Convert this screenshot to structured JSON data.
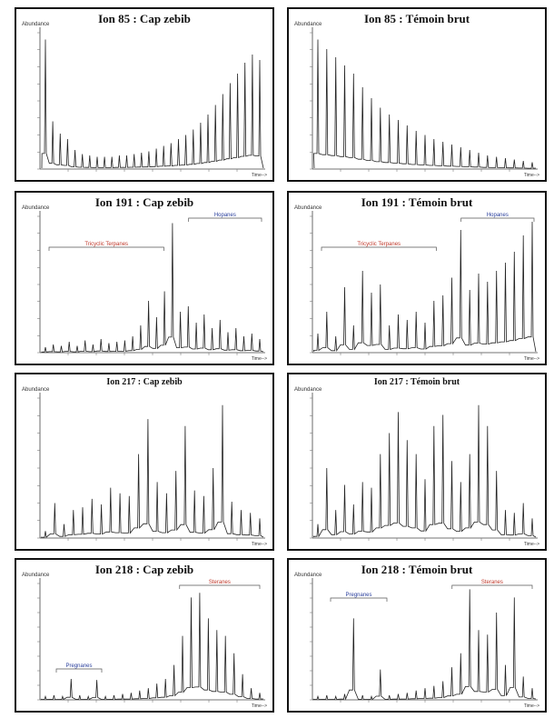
{
  "panels": [
    {
      "title": "Ion 85 : Cap zebib",
      "title_size": "big",
      "ylabel": "Abundance",
      "xlabel": "Time-->",
      "bracket": null
    },
    {
      "title": "Ion 85 : Témoin brut",
      "title_size": "big",
      "ylabel": "Abundance",
      "xlabel": "Time-->",
      "bracket": null
    },
    {
      "title": "Ion 191 : Cap zebib",
      "title_size": "big",
      "ylabel": "Abundance",
      "xlabel": "Time-->",
      "bracket_red": "Tricyclic Terpanes",
      "bracket_blue": "Hopanes"
    },
    {
      "title": "Ion 191 : Témoin brut",
      "title_size": "big",
      "ylabel": "Abundance",
      "xlabel": "Time-->",
      "bracket_red": "Tricyclic Terpanes",
      "bracket_blue": "Hopanes"
    },
    {
      "title": "Ion 217 : Cap zebib",
      "title_size": "small",
      "ylabel": "Abundance",
      "xlabel": "Time-->",
      "bracket": null
    },
    {
      "title": "Ion 217 : Témoin brut",
      "title_size": "small",
      "ylabel": "Abundance",
      "xlabel": "Time-->",
      "bracket": null
    },
    {
      "title": "Ion 218 : Cap zebib",
      "title_size": "big",
      "ylabel": "Abundance",
      "xlabel": "Time-->",
      "bracket_red": "Steranes",
      "bracket_blue": "Pregnanes"
    },
    {
      "title": "Ion 218 : Témoin brut",
      "title_size": "big",
      "ylabel": "Abundance",
      "xlabel": "Time-->",
      "bracket_red": "Steranes",
      "bracket_blue": "Pregnanes"
    }
  ],
  "colors": {
    "trace": "#222222",
    "frame": "#111111",
    "red": "#c0392b",
    "blue": "#2a3f9d"
  },
  "chart_data": [
    {
      "type": "line",
      "title": "Ion 85 : Cap zebib",
      "shape": "n-alkane series, baseline rising at late retention time",
      "x": [
        0,
        1,
        2,
        3,
        4,
        5,
        6,
        7,
        8,
        9,
        10,
        11,
        12,
        13,
        14,
        15,
        16,
        17,
        18,
        19,
        20,
        21,
        22,
        23,
        24,
        25,
        26,
        27,
        28,
        29
      ],
      "y": [
        95,
        35,
        26,
        22,
        14,
        11,
        10,
        9,
        9,
        9,
        10,
        10,
        11,
        12,
        13,
        15,
        17,
        19,
        22,
        25,
        29,
        34,
        40,
        47,
        55,
        63,
        70,
        78,
        84,
        80
      ]
    },
    {
      "type": "line",
      "title": "Ion 85 : Témoin brut",
      "shape": "n-alkane series, decreasing",
      "x": [
        0,
        1,
        2,
        3,
        4,
        5,
        6,
        7,
        8,
        9,
        10,
        11,
        12,
        13,
        14,
        15,
        16,
        17,
        18,
        19,
        20,
        21,
        22,
        23,
        24
      ],
      "y": [
        95,
        88,
        82,
        76,
        70,
        60,
        52,
        45,
        40,
        36,
        32,
        28,
        25,
        22,
        20,
        18,
        16,
        14,
        12,
        10,
        9,
        8,
        7,
        6,
        5
      ]
    },
    {
      "type": "line",
      "title": "Ion 191 : Cap zebib",
      "y": [
        4,
        6,
        5,
        8,
        5,
        9,
        6,
        10,
        7,
        8,
        9,
        12,
        20,
        38,
        26,
        45,
        95,
        30,
        34,
        22,
        28,
        18,
        24,
        15,
        18,
        12,
        14,
        10
      ]
    },
    {
      "type": "line",
      "title": "Ion 191 : Témoin brut",
      "y": [
        14,
        30,
        12,
        48,
        20,
        60,
        44,
        50,
        20,
        28,
        24,
        30,
        22,
        38,
        42,
        55,
        90,
        46,
        58,
        52,
        60,
        66,
        74,
        86,
        96
      ]
    },
    {
      "type": "line",
      "title": "Ion 217 : Cap zebib",
      "y": [
        5,
        25,
        10,
        20,
        22,
        28,
        24,
        36,
        32,
        30,
        60,
        85,
        40,
        32,
        48,
        80,
        34,
        30,
        50,
        95,
        26,
        20,
        18,
        14
      ]
    },
    {
      "type": "line",
      "title": "Ion 217 : Témoin brut",
      "y": [
        10,
        50,
        20,
        38,
        24,
        40,
        36,
        60,
        75,
        90,
        70,
        60,
        42,
        80,
        88,
        55,
        40,
        60,
        95,
        80,
        48,
        20,
        18,
        25,
        14
      ]
    },
    {
      "type": "line",
      "title": "Ion 218 : Cap zebib",
      "y": [
        3,
        4,
        3,
        18,
        4,
        3,
        17,
        3,
        4,
        5,
        6,
        8,
        10,
        14,
        18,
        30,
        55,
        88,
        92,
        70,
        60,
        55,
        40,
        22,
        10,
        6
      ]
    },
    {
      "type": "line",
      "title": "Ion 218 : Témoin brut",
      "y": [
        3,
        4,
        3,
        5,
        70,
        4,
        3,
        26,
        4,
        5,
        6,
        8,
        10,
        12,
        16,
        28,
        40,
        95,
        60,
        56,
        75,
        30,
        88,
        20,
        10
      ]
    }
  ]
}
